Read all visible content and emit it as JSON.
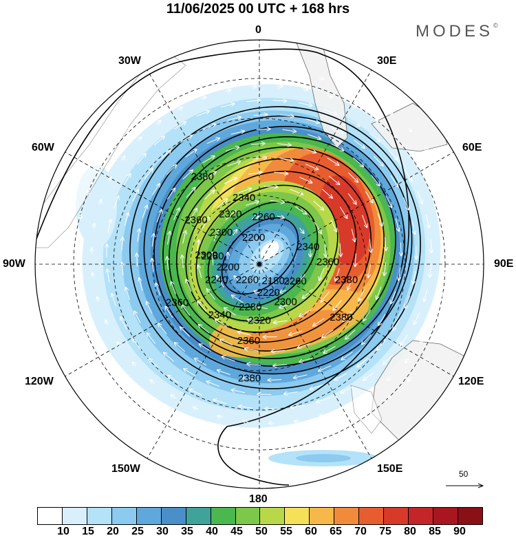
{
  "title": "11/06/2025  00 UTC  + 168 hrs",
  "brand": "MODES",
  "brand_mark": "©",
  "longitude_labels": {
    "n0": "0",
    "e30": "30E",
    "e60": "60E",
    "e90": "90E",
    "e120": "120E",
    "e150": "150E",
    "s180": "180",
    "w150": "150W",
    "w120": "120W",
    "w90": "90W",
    "w60": "60W",
    "w30": "30W"
  },
  "contour_labels": [
    {
      "text": "2380",
      "lon": -33,
      "lat": -40
    },
    {
      "text": "2340",
      "lon": -13,
      "lat": -56
    },
    {
      "text": "2320",
      "lon": -30,
      "lat": -61
    },
    {
      "text": "2260",
      "lon": 5,
      "lat": -66
    },
    {
      "text": "2360",
      "lon": -55,
      "lat": -52
    },
    {
      "text": "2300",
      "lon": -50,
      "lat": -65
    },
    {
      "text": "2200",
      "lon": -12,
      "lat": -76
    },
    {
      "text": "2340",
      "lon": 70,
      "lat": -64
    },
    {
      "text": "2360",
      "lon": 88,
      "lat": -56
    },
    {
      "text": "2300",
      "lon": -80,
      "lat": -63
    },
    {
      "text": "2280",
      "lon": -80,
      "lat": -66
    },
    {
      "text": "2200",
      "lon": -95,
      "lat": -74
    },
    {
      "text": "2240",
      "lon": -110,
      "lat": -67
    },
    {
      "text": "2260",
      "lon": -142,
      "lat": -80
    },
    {
      "text": "2180",
      "lon": 140,
      "lat": -79
    },
    {
      "text": "2260",
      "lon": 115,
      "lat": -70
    },
    {
      "text": "2380",
      "lon": 100,
      "lat": -47
    },
    {
      "text": "2380",
      "lon": 123,
      "lat": -43
    },
    {
      "text": "2220",
      "lon": 162,
      "lat": -75
    },
    {
      "text": "2300",
      "lon": 145,
      "lat": -67
    },
    {
      "text": "2280",
      "lon": -168,
      "lat": -68
    },
    {
      "text": "2320",
      "lon": 180,
      "lat": -62
    },
    {
      "text": "2340",
      "lon": -142,
      "lat": -58
    },
    {
      "text": "2360",
      "lon": -172,
      "lat": -52
    },
    {
      "text": "2360",
      "lon": -115,
      "lat": -46
    },
    {
      "text": "2380",
      "lon": -175,
      "lat": -36
    }
  ],
  "colorbar": {
    "colors": [
      "#ffffff",
      "#d8f0fc",
      "#b4e2f8",
      "#8ccaef",
      "#5fa8dc",
      "#4a8fc8",
      "#3fa39a",
      "#4ab74f",
      "#7dc74a",
      "#b8d84a",
      "#f5e05a",
      "#f7b84a",
      "#f18a3a",
      "#e85d30",
      "#d83a2a",
      "#c42528",
      "#a8161f",
      "#8a1018"
    ],
    "tick_labels": [
      "10",
      "15",
      "20",
      "25",
      "30",
      "35",
      "40",
      "45",
      "50",
      "55",
      "60",
      "65",
      "70",
      "75",
      "80",
      "85",
      "90"
    ]
  },
  "reference_vector": {
    "value": "50"
  }
}
